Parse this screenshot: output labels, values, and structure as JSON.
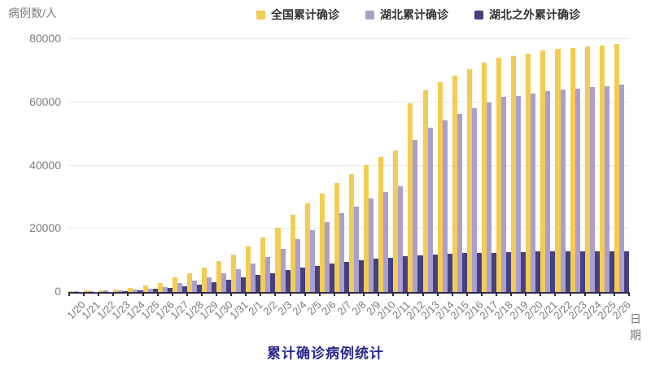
{
  "chart_data": {
    "type": "bar",
    "title": "累计确诊病例统计",
    "ylabel": "病例数/人",
    "xlabel": "日期",
    "ylim": [
      0,
      80000
    ],
    "yticks": [
      0,
      20000,
      40000,
      60000,
      80000
    ],
    "grid": true,
    "legend_position": "top-right",
    "x": [
      "1/20",
      "1/21",
      "1/22",
      "1/23",
      "1/24",
      "1/25",
      "1/26",
      "1/27",
      "1/28",
      "1/29",
      "1/30",
      "1/31",
      "2/1",
      "2/2",
      "2/3",
      "2/4",
      "2/5",
      "2/6",
      "2/7",
      "2/8",
      "2/9",
      "2/10",
      "2/11",
      "2/12",
      "2/13",
      "2/14",
      "2/15",
      "2/16",
      "2/17",
      "2/18",
      "2/19",
      "2/20",
      "2/21",
      "2/22",
      "2/23",
      "2/24",
      "2/25",
      "2/26"
    ],
    "series": [
      {
        "name": "全国累计确诊",
        "color": "#F3CC54",
        "values": [
          291,
          440,
          571,
          830,
          1287,
          1975,
          2744,
          4515,
          5974,
          7711,
          9692,
          11791,
          14380,
          17205,
          20438,
          24324,
          28018,
          31161,
          34546,
          37198,
          40171,
          42638,
          44653,
          59804,
          63851,
          66492,
          68500,
          70548,
          72436,
          74185,
          74576,
          75465,
          76288,
          76936,
          77150,
          77658,
          78064,
          78497
        ]
      },
      {
        "name": "湖北累计确诊",
        "color": "#A9A0CF",
        "values": [
          270,
          375,
          444,
          549,
          729,
          1052,
          1423,
          2714,
          3554,
          4586,
          5806,
          7153,
          9074,
          11177,
          13522,
          16678,
          19665,
          22112,
          24953,
          27100,
          29631,
          31728,
          33366,
          48206,
          51986,
          54406,
          56249,
          58182,
          59989,
          61682,
          62031,
          62662,
          63454,
          64084,
          64287,
          64786,
          65187,
          65596
        ]
      },
      {
        "name": "湖北之外累计确诊",
        "color": "#45407F",
        "values": [
          21,
          65,
          127,
          281,
          558,
          923,
          1321,
          1801,
          2420,
          3125,
          3886,
          4638,
          5306,
          6028,
          6916,
          7646,
          8353,
          9049,
          9593,
          10098,
          10540,
          10910,
          11287,
          11598,
          11865,
          12086,
          12251,
          12366,
          12447,
          12503,
          12545,
          12803,
          12834,
          12852,
          12863,
          12872,
          12877,
          12901
        ]
      }
    ]
  },
  "colors": {
    "axis": "#2B2B45",
    "gridline": "#E9E9E9",
    "tick_label": "#7B7B7B",
    "title": "#28288A",
    "legend_text": "#333333",
    "background": "#FFFFFF"
  }
}
